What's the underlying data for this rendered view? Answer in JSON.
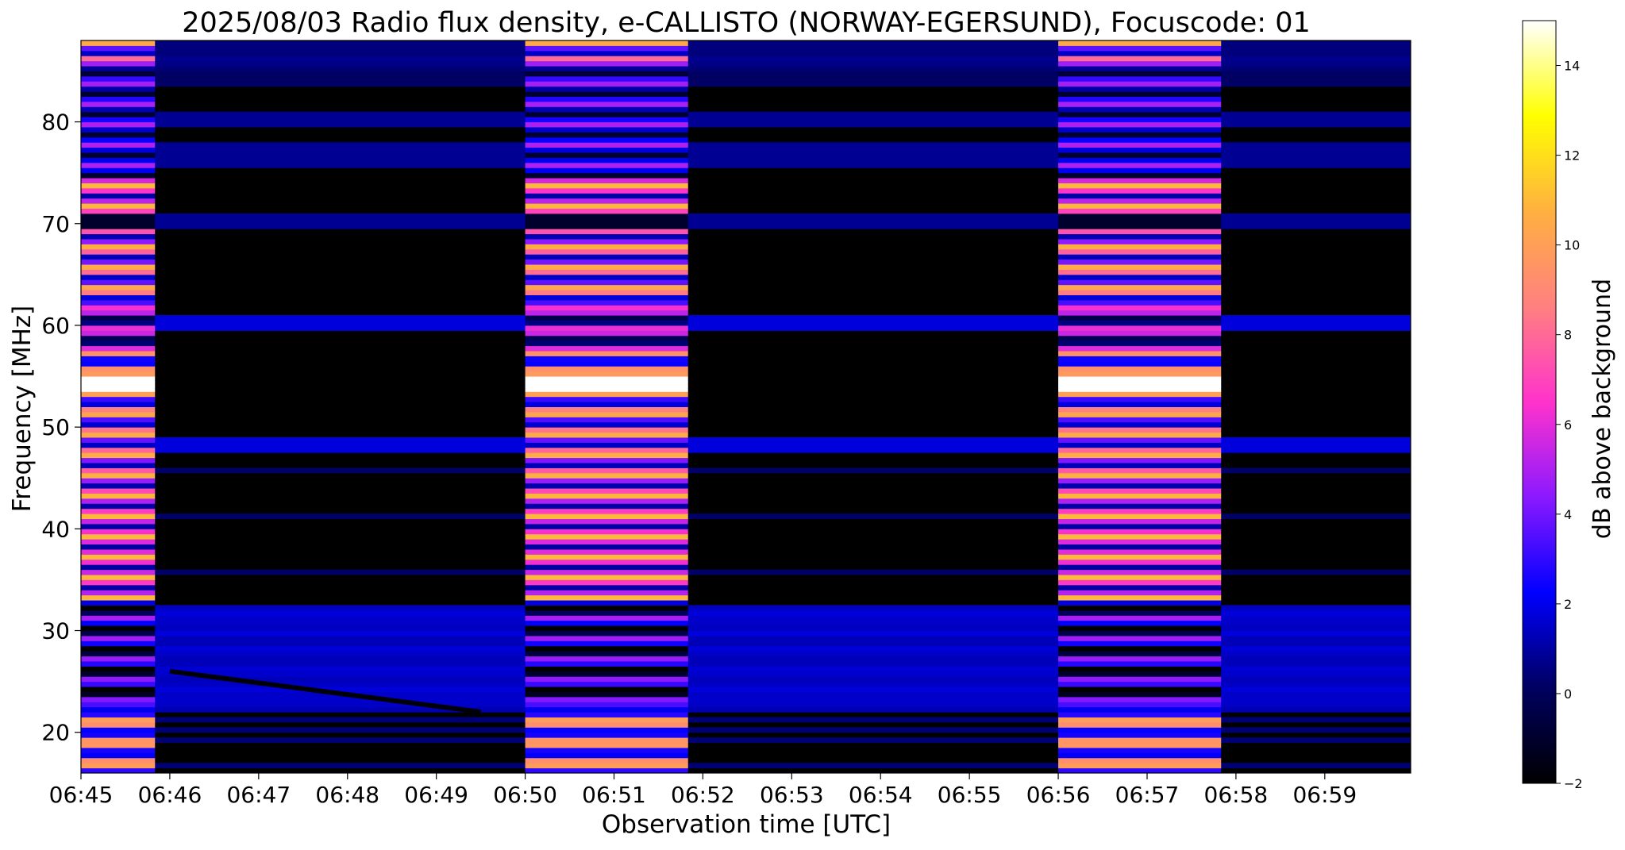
{
  "chart_data": {
    "type": "heatmap",
    "title": "2025/08/03  Radio flux density, e-CALLISTO (NORWAY-EGERSUND), Focuscode: 01",
    "xlabel": "Observation time [UTC]",
    "ylabel": "Frequency [MHz]",
    "colorbar_label": "dB above background",
    "x_ticks": [
      "06:45",
      "06:46",
      "06:47",
      "06:48",
      "06:49",
      "06:50",
      "06:51",
      "06:52",
      "06:53",
      "06:54",
      "06:55",
      "06:56",
      "06:57",
      "06:58",
      "06:59"
    ],
    "x_range": [
      "06:45:00",
      "06:59:58"
    ],
    "y_ticks": [
      20,
      30,
      40,
      50,
      60,
      70,
      80
    ],
    "y_range": [
      16,
      88
    ],
    "colorbar_ticks": [
      -2,
      0,
      2,
      4,
      6,
      8,
      10,
      12,
      14
    ],
    "colorbar_range": [
      -2,
      15
    ],
    "colormap": [
      "#000000",
      "#000060",
      "#0000ff",
      "#8b19ff",
      "#ff33cc",
      "#ff8080",
      "#ffb040",
      "#ffff00",
      "#ffffff"
    ],
    "grid": false,
    "calibration_intervals": [
      {
        "start": "06:45:00",
        "end": "06:45:50",
        "level_db": 12
      },
      {
        "start": "06:50:00",
        "end": "06:51:50",
        "level_db": 12
      },
      {
        "start": "06:56:00",
        "end": "06:57:50",
        "level_db": 12
      }
    ],
    "features": [
      {
        "name": "strong band",
        "freq_mhz": 54,
        "level_db": 15
      },
      {
        "name": "interference band",
        "freq_mhz": 60,
        "level_db": 2
      },
      {
        "name": "interference band",
        "freq_mhz": 48,
        "level_db": 2
      },
      {
        "name": "interference band",
        "freq_mhz": 70,
        "level_db": 2
      },
      {
        "name": "interference band",
        "freq_mhz": 80,
        "level_db": 1
      },
      {
        "name": "broadband noise",
        "freq_mhz_range": [
          22,
          32
        ],
        "level_db": 2
      },
      {
        "name": "drifting feature",
        "start": "06:46:00",
        "end": "06:49:30",
        "freq_mhz_from": 26,
        "freq_mhz_to": 22
      }
    ]
  }
}
